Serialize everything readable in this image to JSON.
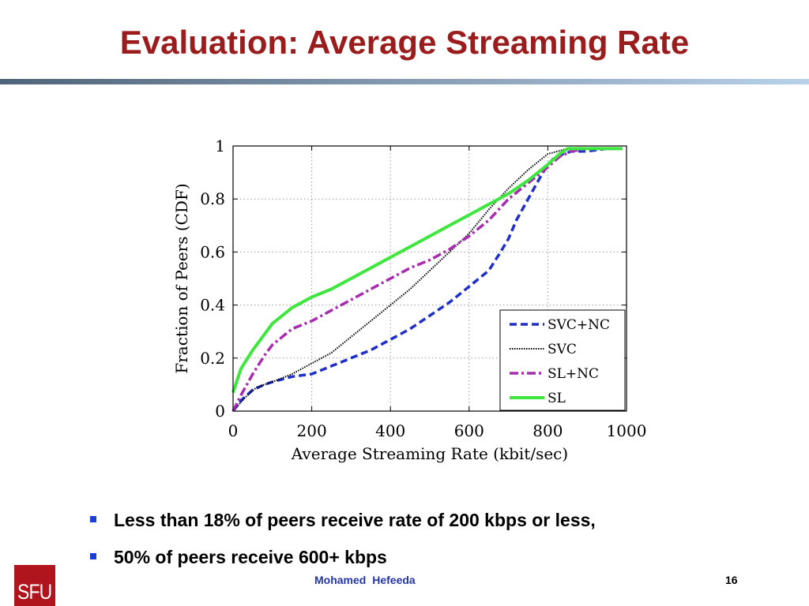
{
  "slide": {
    "title": "Evaluation: Average Streaming Rate",
    "bullets": [
      "Less than 18% of peers receive rate of 200 kbps or less,",
      "50% of peers receive 600+ kbps"
    ],
    "logo_text": "SFU",
    "author": "Mohamed  Hefeeda",
    "page_number": "16",
    "colors": {
      "title": "#9b1c1c",
      "bullet": "#1a3fd6",
      "author": "#2535a8",
      "logo": "#b0151d"
    }
  },
  "chart_data": {
    "type": "line",
    "title": "",
    "xlabel": "Average Streaming Rate (kbit/sec)",
    "ylabel": "Fraction of Peers (CDF)",
    "xlim": [
      0,
      1000
    ],
    "ylim": [
      0,
      1
    ],
    "xticks": [
      "0",
      "200",
      "400",
      "600",
      "800",
      "1000"
    ],
    "yticks": [
      "0",
      "0.2",
      "0.4",
      "0.6",
      "0.8",
      "1"
    ],
    "grid": true,
    "legend_position": "bottom-right",
    "series": [
      {
        "name": "SVC+NC",
        "color": "#1f2fc8",
        "style": "dashed",
        "x": [
          0,
          20,
          50,
          80,
          100,
          150,
          200,
          250,
          300,
          350,
          400,
          450,
          500,
          550,
          600,
          650,
          680,
          700,
          720,
          750,
          780,
          800,
          820,
          840,
          860,
          900,
          950,
          990
        ],
        "y": [
          0,
          0.04,
          0.08,
          0.1,
          0.11,
          0.13,
          0.14,
          0.17,
          0.2,
          0.23,
          0.27,
          0.31,
          0.36,
          0.41,
          0.47,
          0.53,
          0.6,
          0.65,
          0.72,
          0.8,
          0.88,
          0.93,
          0.96,
          0.97,
          0.98,
          0.98,
          0.99,
          0.99
        ]
      },
      {
        "name": "SVC",
        "color": "#000000",
        "style": "dotted",
        "x": [
          0,
          30,
          60,
          100,
          150,
          200,
          250,
          300,
          350,
          400,
          450,
          500,
          550,
          600,
          650,
          700,
          750,
          800,
          850,
          900,
          990
        ],
        "y": [
          0,
          0.05,
          0.09,
          0.11,
          0.14,
          0.18,
          0.22,
          0.28,
          0.34,
          0.4,
          0.46,
          0.53,
          0.6,
          0.67,
          0.76,
          0.84,
          0.91,
          0.97,
          0.99,
          0.99,
          0.99
        ]
      },
      {
        "name": "SL+NC",
        "color": "#a82bb0",
        "style": "dashdot",
        "x": [
          0,
          20,
          50,
          80,
          100,
          150,
          200,
          250,
          300,
          350,
          400,
          450,
          500,
          550,
          600,
          650,
          700,
          750,
          800,
          830,
          860,
          900,
          990
        ],
        "y": [
          0,
          0.06,
          0.14,
          0.21,
          0.25,
          0.31,
          0.34,
          0.38,
          0.42,
          0.46,
          0.5,
          0.54,
          0.57,
          0.61,
          0.66,
          0.72,
          0.8,
          0.86,
          0.92,
          0.96,
          0.98,
          0.99,
          0.99
        ]
      },
      {
        "name": "SL",
        "color": "#3ee63e",
        "style": "solid",
        "x": [
          0,
          20,
          50,
          80,
          100,
          150,
          200,
          250,
          300,
          350,
          400,
          450,
          500,
          550,
          600,
          650,
          700,
          750,
          800,
          830,
          850,
          900,
          990
        ],
        "y": [
          0.07,
          0.16,
          0.23,
          0.29,
          0.33,
          0.39,
          0.43,
          0.46,
          0.5,
          0.54,
          0.58,
          0.62,
          0.66,
          0.7,
          0.74,
          0.78,
          0.82,
          0.87,
          0.93,
          0.97,
          0.99,
          0.99,
          0.99
        ]
      }
    ]
  }
}
